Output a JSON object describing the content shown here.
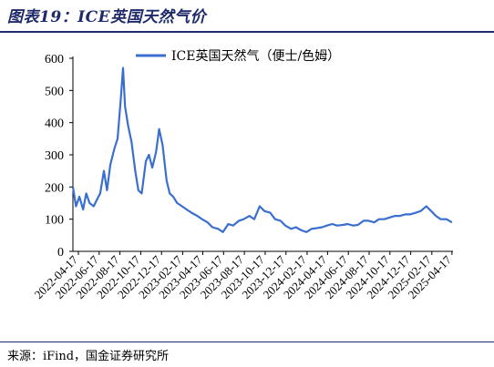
{
  "figure": {
    "title": "图表19：ICE英国天然气价",
    "source": "来源：iFind，国金证券研究所"
  },
  "colors": {
    "line": "#3a6fd0",
    "rule": "#1f2a6b"
  },
  "chart_data": {
    "type": "line",
    "title": "",
    "xlabel": "",
    "ylabel": "",
    "ylim": [
      0,
      600
    ],
    "yticks": [
      0,
      100,
      200,
      300,
      400,
      500,
      600
    ],
    "legend": {
      "position": "top-right"
    },
    "grid": false,
    "xtick_labels": [
      "2022-04-17",
      "2022-06-17",
      "2022-08-17",
      "2022-10-17",
      "2022-12-17",
      "2023-02-17",
      "2023-04-17",
      "2023-06-17",
      "2023-08-17",
      "2023-10-17",
      "2023-12-17",
      "2024-02-17",
      "2024-04-17",
      "2024-06-17",
      "2024-08-17",
      "2024-10-17",
      "2024-12-17",
      "2025-02-17",
      "2025-04-17"
    ],
    "series": [
      {
        "name": "ICE英国天然气（便士/色姆）",
        "x": [
          "2022-04-01",
          "2022-04-10",
          "2022-04-20",
          "2022-05-01",
          "2022-05-10",
          "2022-05-20",
          "2022-06-01",
          "2022-06-10",
          "2022-06-20",
          "2022-07-01",
          "2022-07-10",
          "2022-07-20",
          "2022-08-01",
          "2022-08-10",
          "2022-08-20",
          "2022-08-26",
          "2022-09-01",
          "2022-09-10",
          "2022-09-20",
          "2022-10-01",
          "2022-10-10",
          "2022-10-20",
          "2022-11-01",
          "2022-11-10",
          "2022-11-20",
          "2022-12-01",
          "2022-12-10",
          "2022-12-20",
          "2023-01-01",
          "2023-01-10",
          "2023-01-20",
          "2023-02-01",
          "2023-02-15",
          "2023-03-01",
          "2023-03-15",
          "2023-04-01",
          "2023-04-15",
          "2023-05-01",
          "2023-05-15",
          "2023-06-01",
          "2023-06-15",
          "2023-07-01",
          "2023-07-15",
          "2023-08-01",
          "2023-08-15",
          "2023-09-01",
          "2023-09-15",
          "2023-10-01",
          "2023-10-15",
          "2023-11-01",
          "2023-11-15",
          "2023-12-01",
          "2023-12-15",
          "2024-01-01",
          "2024-01-15",
          "2024-02-01",
          "2024-02-15",
          "2024-03-01",
          "2024-03-15",
          "2024-04-01",
          "2024-04-15",
          "2024-05-01",
          "2024-05-15",
          "2024-06-01",
          "2024-06-15",
          "2024-07-01",
          "2024-07-15",
          "2024-08-01",
          "2024-08-15",
          "2024-09-01",
          "2024-09-15",
          "2024-10-01",
          "2024-10-15",
          "2024-11-01",
          "2024-11-15",
          "2024-12-01",
          "2024-12-15",
          "2025-01-01",
          "2025-01-15",
          "2025-02-01",
          "2025-02-15",
          "2025-03-01",
          "2025-03-15",
          "2025-04-01",
          "2025-04-17"
        ],
        "values": [
          200,
          140,
          170,
          130,
          180,
          150,
          140,
          160,
          180,
          250,
          190,
          270,
          320,
          350,
          480,
          570,
          450,
          390,
          340,
          250,
          190,
          180,
          280,
          300,
          260,
          310,
          380,
          330,
          220,
          180,
          170,
          150,
          140,
          130,
          120,
          110,
          100,
          90,
          75,
          70,
          60,
          85,
          80,
          95,
          100,
          110,
          100,
          140,
          125,
          120,
          100,
          95,
          80,
          70,
          75,
          65,
          60,
          70,
          72,
          75,
          80,
          85,
          80,
          82,
          85,
          80,
          82,
          95,
          95,
          90,
          100,
          100,
          105,
          110,
          110,
          115,
          115,
          120,
          125,
          140,
          125,
          110,
          100,
          100,
          90
        ]
      }
    ]
  }
}
